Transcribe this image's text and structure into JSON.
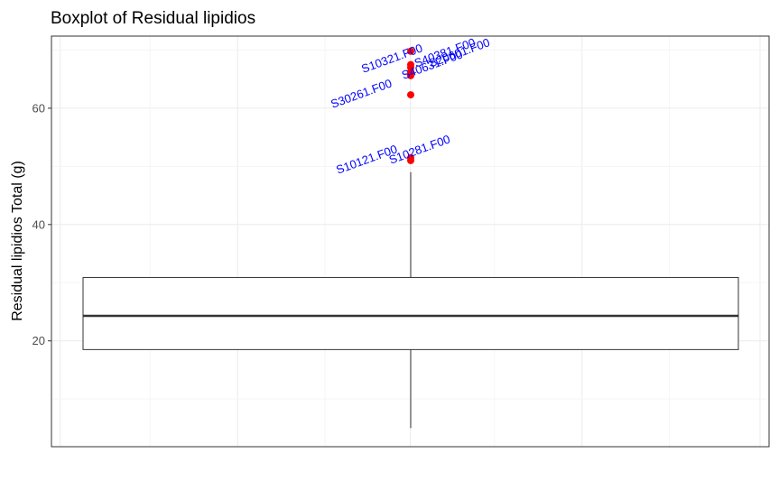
{
  "chart_data": {
    "type": "boxplot",
    "title": "Boxplot of Residual lipidios",
    "xlabel": "",
    "ylabel": "Residual lipidios Total (g)",
    "ylim": [
      1.8,
      72.4
    ],
    "yticks": [
      20,
      40,
      60
    ],
    "grid": true,
    "box": {
      "min": 5.0,
      "q1": 18.5,
      "median": 24.3,
      "q3": 30.9,
      "upper_whisker": 49.0
    },
    "outliers": [
      {
        "value": 69.8,
        "label": "S10321.F00"
      },
      {
        "value": 67.5,
        "label": "S40381.F00"
      },
      {
        "value": 67.0,
        "label": "S20601.F00"
      },
      {
        "value": 66.2,
        "label": "S40631.F00"
      },
      {
        "value": 65.6,
        "label": "S30261.F00"
      },
      {
        "value": 62.3,
        "label": ""
      },
      {
        "value": 51.5,
        "label": "S10121.F00"
      },
      {
        "value": 51.0,
        "label": "S10281.F00"
      }
    ],
    "colors": {
      "outlier_point": "#ff0000",
      "outlier_label": "#0000ff",
      "box_line": "#333333",
      "grid_major": "#ebebeb",
      "grid_minor": "#f5f5f5",
      "panel_border": "#333333"
    }
  }
}
